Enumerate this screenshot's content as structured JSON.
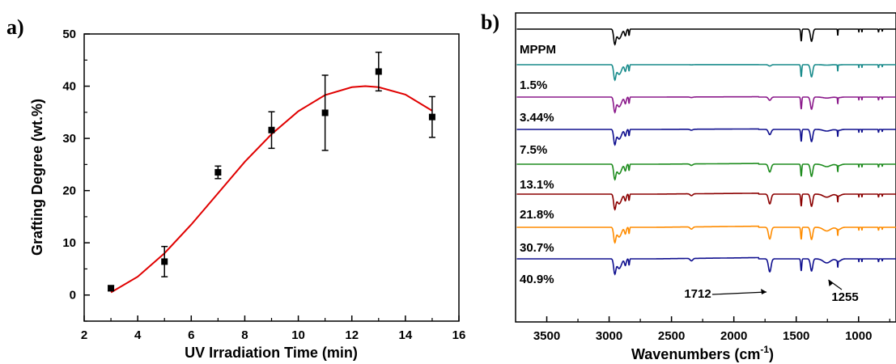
{
  "chart_data": [
    {
      "panel_label": "a)",
      "type": "scatter",
      "xlabel": "UV Irradiation Time (min)",
      "ylabel": "Grafting Degree (wt.%)",
      "xlim": [
        2,
        16
      ],
      "ylim": [
        -5,
        50
      ],
      "xticks": [
        "2",
        "4",
        "6",
        "8",
        "10",
        "12",
        "14",
        "16"
      ],
      "yticks": [
        "0",
        "10",
        "20",
        "30",
        "40",
        "50"
      ],
      "points": [
        {
          "x": 3,
          "y": 1.3,
          "err": 0.5
        },
        {
          "x": 5,
          "y": 6.4,
          "err": 2.9
        },
        {
          "x": 7,
          "y": 23.5,
          "err": 1.2
        },
        {
          "x": 9,
          "y": 31.6,
          "err": 3.5
        },
        {
          "x": 11,
          "y": 34.9,
          "err": 7.2
        },
        {
          "x": 13,
          "y": 42.8,
          "err": 3.7
        },
        {
          "x": 15,
          "y": 34.1,
          "err": 3.9
        }
      ],
      "fit_curve": {
        "x": [
          3,
          4,
          5,
          6,
          7,
          8,
          9,
          10,
          11,
          12,
          12.5,
          13,
          14,
          15
        ],
        "y": [
          0.5,
          3.5,
          8.0,
          13.5,
          19.5,
          25.5,
          30.8,
          35.2,
          38.3,
          39.8,
          40.0,
          39.8,
          38.4,
          35.3
        ],
        "color": "#e00000"
      },
      "marker_color": "#000000",
      "legend": "none",
      "grid": false
    },
    {
      "panel_label": "b)",
      "type": "line",
      "xlabel": "Wavenumbers (cm",
      "xlabel_sup": "-1",
      "xlabel_end": ")",
      "xlim": [
        3750,
        700
      ],
      "xticks": [
        "3500",
        "3000",
        "2500",
        "2000",
        "1500",
        "1000"
      ],
      "series": [
        {
          "name": "MPPM",
          "color": "#000000",
          "carbonyl": 0
        },
        {
          "name": "1.5%",
          "color": "#1a8c8c",
          "carbonyl": 0.1
        },
        {
          "name": "3.44%",
          "color": "#8b1a8b",
          "carbonyl": 0.25
        },
        {
          "name": "7.5%",
          "color": "#10108f",
          "carbonyl": 0.4
        },
        {
          "name": "13.1%",
          "color": "#1e8c1e",
          "carbonyl": 0.6
        },
        {
          "name": "21.8%",
          "color": "#8b0000",
          "carbonyl": 0.75
        },
        {
          "name": "30.7%",
          "color": "#ff8c00",
          "carbonyl": 0.9
        },
        {
          "name": "40.9%",
          "color": "#10108f",
          "carbonyl": 1.0
        }
      ],
      "annotations": [
        {
          "text": "1712",
          "x": 1712
        },
        {
          "text": "1255",
          "x": 1255
        }
      ],
      "legend": "none",
      "grid": false
    }
  ]
}
